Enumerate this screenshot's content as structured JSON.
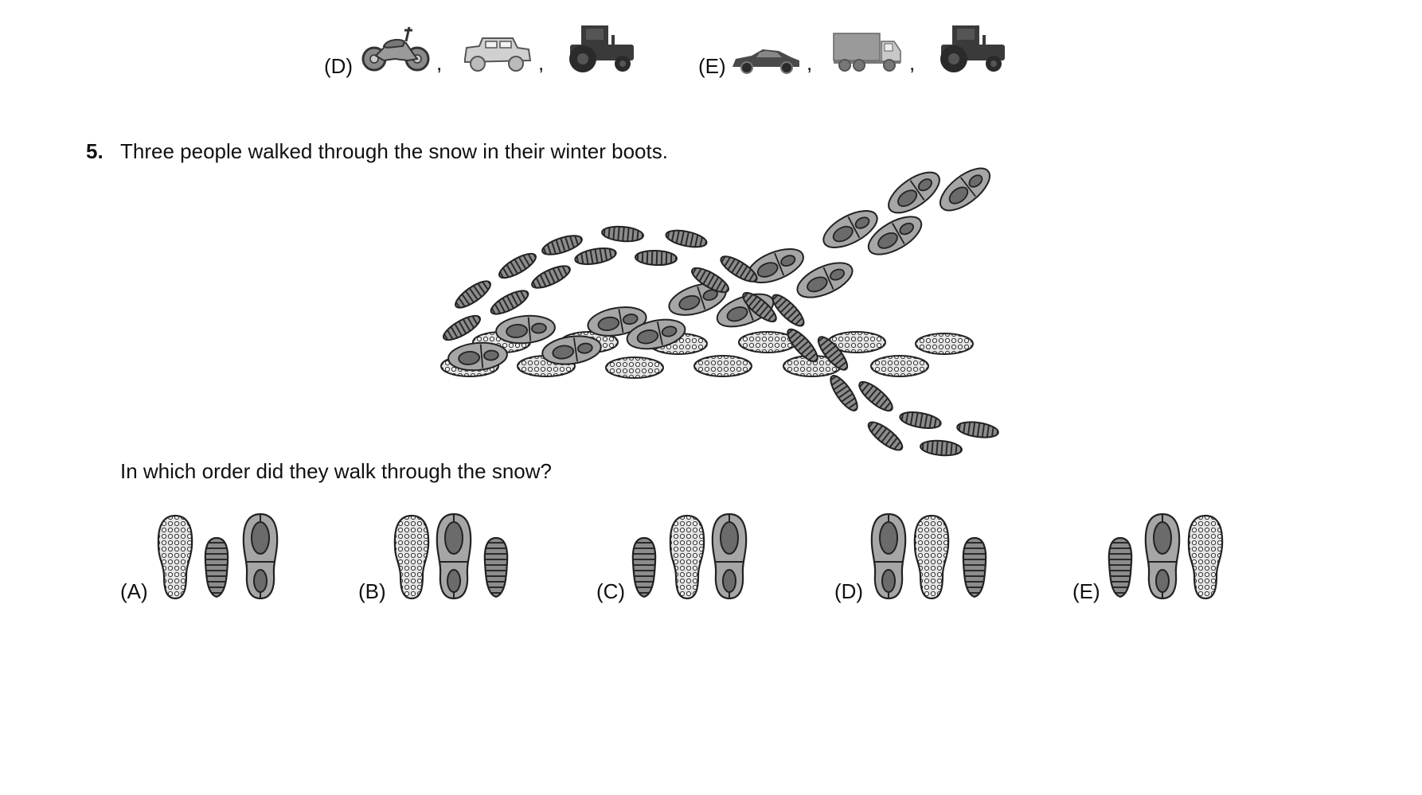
{
  "top_options": [
    {
      "label": "(D)",
      "vehicles": [
        "motorcycle-icon",
        "jeep-icon",
        "tractor-icon"
      ]
    },
    {
      "label": "(E)",
      "vehicles": [
        "sports-car-icon",
        "truck-icon",
        "tractor-icon"
      ]
    }
  ],
  "separator": ",",
  "question": {
    "number": "5.",
    "text": "Three people walked through the snow in their winter boots.",
    "prompt": "In which order did they walk through the snow?",
    "answers": [
      {
        "label": "(A)",
        "order": [
          "dotted-boot-print-icon",
          "striped-boot-print-icon",
          "heel-boot-print-icon"
        ]
      },
      {
        "label": "(B)",
        "order": [
          "dotted-boot-print-icon",
          "heel-boot-print-icon",
          "striped-boot-print-icon"
        ]
      },
      {
        "label": "(C)",
        "order": [
          "striped-boot-print-icon",
          "dotted-boot-print-icon",
          "heel-boot-print-icon"
        ]
      },
      {
        "label": "(D)",
        "order": [
          "heel-boot-print-icon",
          "dotted-boot-print-icon",
          "striped-boot-print-icon"
        ]
      },
      {
        "label": "(E)",
        "order": [
          "striped-boot-print-icon",
          "heel-boot-print-icon",
          "dotted-boot-print-icon"
        ]
      }
    ]
  },
  "colors": {
    "text": "#111111",
    "light_fill": "#d9d9d9",
    "mid_fill": "#a6a6a6",
    "dark_fill": "#6b6b6b",
    "tractor": "#3a3a3a"
  }
}
